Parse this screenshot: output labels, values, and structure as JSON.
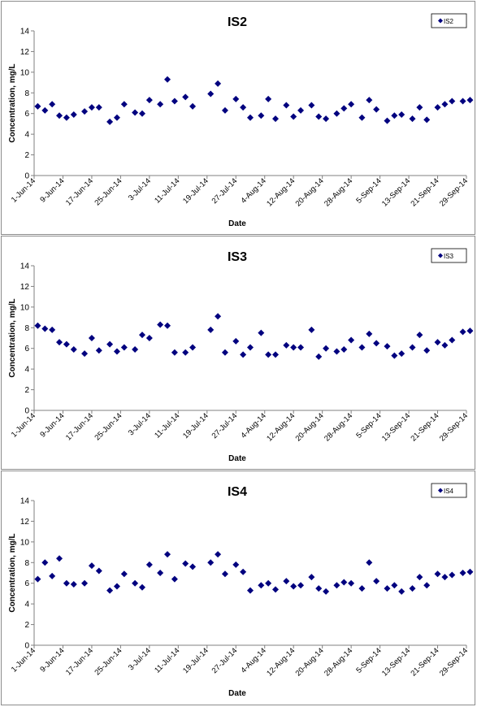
{
  "colors": {
    "marker": "#00007f",
    "axis": "#808080",
    "text": "#000000",
    "frame": "#8c8c8c"
  },
  "chart_data": [
    {
      "type": "scatter",
      "title": "IS2",
      "xlabel": "Date",
      "ylabel": "Concentration, mg/L",
      "legend": [
        "IS2"
      ],
      "legend_position": "top-right",
      "grid": false,
      "xlim": [
        "1-Jun-14",
        "29-Sep-14"
      ],
      "ylim": [
        0,
        14
      ],
      "y_ticks": [
        "0",
        "2",
        "4",
        "6",
        "8",
        "10",
        "12",
        "14"
      ],
      "x_ticks": [
        "1-Jun-14",
        "9-Jun-14",
        "17-Jun-14",
        "25-Jun-14",
        "3-Jul-14",
        "11-Jul-14",
        "19-Jul-14",
        "27-Jul-14",
        "4-Aug-14",
        "12-Aug-14",
        "20-Aug-14",
        "28-Aug-14",
        "5-Sep-14",
        "13-Sep-14",
        "21-Sep-14",
        "29-Sep-14"
      ],
      "series": [
        {
          "name": "IS2",
          "x": [
            "2-Jun-14",
            "4-Jun-14",
            "6-Jun-14",
            "8-Jun-14",
            "10-Jun-14",
            "12-Jun-14",
            "15-Jun-14",
            "17-Jun-14",
            "19-Jun-14",
            "22-Jun-14",
            "24-Jun-14",
            "26-Jun-14",
            "29-Jun-14",
            "1-Jul-14",
            "3-Jul-14",
            "6-Jul-14",
            "8-Jul-14",
            "10-Jul-14",
            "13-Jul-14",
            "15-Jul-14",
            "20-Jul-14",
            "22-Jul-14",
            "24-Jul-14",
            "27-Jul-14",
            "29-Jul-14",
            "31-Jul-14",
            "3-Aug-14",
            "5-Aug-14",
            "7-Aug-14",
            "10-Aug-14",
            "12-Aug-14",
            "14-Aug-14",
            "17-Aug-14",
            "19-Aug-14",
            "21-Aug-14",
            "24-Aug-14",
            "26-Aug-14",
            "28-Aug-14",
            "31-Aug-14",
            "2-Sep-14",
            "4-Sep-14",
            "7-Sep-14",
            "9-Sep-14",
            "11-Sep-14",
            "14-Sep-14",
            "16-Sep-14",
            "18-Sep-14",
            "21-Sep-14",
            "23-Sep-14",
            "25-Sep-14",
            "28-Sep-14",
            "30-Sep-14"
          ],
          "y": [
            6.7,
            6.3,
            6.9,
            5.8,
            5.6,
            5.9,
            6.2,
            6.6,
            6.6,
            5.2,
            5.6,
            6.9,
            6.1,
            6.0,
            7.3,
            6.9,
            9.3,
            7.2,
            7.6,
            6.7,
            7.9,
            8.9,
            6.3,
            7.4,
            6.6,
            5.6,
            5.8,
            7.4,
            5.5,
            6.8,
            5.7,
            6.3,
            6.8,
            5.7,
            5.5,
            6.0,
            6.5,
            6.9,
            5.6,
            7.3,
            6.4,
            5.3,
            5.8,
            5.9,
            5.5,
            6.6,
            5.4,
            6.6,
            6.9,
            7.2,
            7.2,
            7.3
          ]
        }
      ]
    },
    {
      "type": "scatter",
      "title": "IS3",
      "xlabel": "Date",
      "ylabel": "Concentration, mg/L",
      "legend": [
        "IS3"
      ],
      "legend_position": "top-right",
      "grid": false,
      "xlim": [
        "1-Jun-14",
        "29-Sep-14"
      ],
      "ylim": [
        0,
        14
      ],
      "y_ticks": [
        "0",
        "2",
        "4",
        "6",
        "8",
        "10",
        "12",
        "14"
      ],
      "x_ticks": [
        "1-Jun-14",
        "9-Jun-14",
        "17-Jun-14",
        "25-Jun-14",
        "3-Jul-14",
        "11-Jul-14",
        "19-Jul-14",
        "27-Jul-14",
        "4-Aug-14",
        "12-Aug-14",
        "20-Aug-14",
        "28-Aug-14",
        "5-Sep-14",
        "13-Sep-14",
        "21-Sep-14",
        "29-Sep-14"
      ],
      "series": [
        {
          "name": "IS3",
          "x": [
            "2-Jun-14",
            "4-Jun-14",
            "6-Jun-14",
            "8-Jun-14",
            "10-Jun-14",
            "12-Jun-14",
            "15-Jun-14",
            "17-Jun-14",
            "19-Jun-14",
            "22-Jun-14",
            "24-Jun-14",
            "26-Jun-14",
            "29-Jun-14",
            "1-Jul-14",
            "3-Jul-14",
            "6-Jul-14",
            "8-Jul-14",
            "10-Jul-14",
            "13-Jul-14",
            "15-Jul-14",
            "20-Jul-14",
            "22-Jul-14",
            "24-Jul-14",
            "27-Jul-14",
            "29-Jul-14",
            "31-Jul-14",
            "3-Aug-14",
            "5-Aug-14",
            "7-Aug-14",
            "10-Aug-14",
            "12-Aug-14",
            "14-Aug-14",
            "17-Aug-14",
            "19-Aug-14",
            "21-Aug-14",
            "24-Aug-14",
            "26-Aug-14",
            "28-Aug-14",
            "31-Aug-14",
            "2-Sep-14",
            "4-Sep-14",
            "7-Sep-14",
            "9-Sep-14",
            "11-Sep-14",
            "14-Sep-14",
            "16-Sep-14",
            "18-Sep-14",
            "21-Sep-14",
            "23-Sep-14",
            "25-Sep-14",
            "28-Sep-14",
            "30-Sep-14"
          ],
          "y": [
            8.2,
            7.9,
            7.8,
            6.6,
            6.4,
            5.9,
            5.5,
            7.0,
            5.8,
            6.4,
            5.7,
            6.1,
            5.9,
            7.3,
            7.0,
            8.3,
            8.2,
            5.6,
            5.6,
            6.1,
            7.8,
            9.1,
            5.6,
            6.7,
            5.4,
            6.1,
            7.5,
            5.4,
            5.4,
            6.3,
            6.1,
            6.1,
            7.8,
            5.2,
            6.0,
            5.7,
            5.9,
            6.8,
            6.1,
            7.4,
            6.5,
            6.2,
            5.3,
            5.5,
            6.1,
            7.3,
            5.8,
            6.6,
            6.3,
            6.8,
            7.6,
            7.7
          ]
        }
      ]
    },
    {
      "type": "scatter",
      "title": "IS4",
      "xlabel": "Date",
      "ylabel": "Concentration, mg/L",
      "legend": [
        "IS4"
      ],
      "legend_position": "top-right",
      "grid": false,
      "xlim": [
        "1-Jun-14",
        "29-Sep-14"
      ],
      "ylim": [
        0,
        14
      ],
      "y_ticks": [
        "0",
        "2",
        "4",
        "6",
        "8",
        "10",
        "12",
        "14"
      ],
      "x_ticks": [
        "1-Jun-14",
        "9-Jun-14",
        "17-Jun-14",
        "25-Jun-14",
        "3-Jul-14",
        "11-Jul-14",
        "19-Jul-14",
        "27-Jul-14",
        "4-Aug-14",
        "12-Aug-14",
        "20-Aug-14",
        "28-Aug-14",
        "5-Sep-14",
        "13-Sep-14",
        "21-Sep-14",
        "29-Sep-14"
      ],
      "series": [
        {
          "name": "IS4",
          "x": [
            "2-Jun-14",
            "4-Jun-14",
            "6-Jun-14",
            "8-Jun-14",
            "10-Jun-14",
            "12-Jun-14",
            "15-Jun-14",
            "17-Jun-14",
            "19-Jun-14",
            "22-Jun-14",
            "24-Jun-14",
            "26-Jun-14",
            "29-Jun-14",
            "1-Jul-14",
            "3-Jul-14",
            "6-Jul-14",
            "8-Jul-14",
            "10-Jul-14",
            "13-Jul-14",
            "15-Jul-14",
            "20-Jul-14",
            "22-Jul-14",
            "24-Jul-14",
            "27-Jul-14",
            "29-Jul-14",
            "31-Jul-14",
            "3-Aug-14",
            "5-Aug-14",
            "7-Aug-14",
            "10-Aug-14",
            "12-Aug-14",
            "14-Aug-14",
            "17-Aug-14",
            "19-Aug-14",
            "21-Aug-14",
            "24-Aug-14",
            "26-Aug-14",
            "28-Aug-14",
            "31-Aug-14",
            "2-Sep-14",
            "4-Sep-14",
            "7-Sep-14",
            "9-Sep-14",
            "11-Sep-14",
            "14-Sep-14",
            "16-Sep-14",
            "18-Sep-14",
            "21-Sep-14",
            "23-Sep-14",
            "25-Sep-14",
            "28-Sep-14",
            "30-Sep-14"
          ],
          "y": [
            6.4,
            8.0,
            6.7,
            8.4,
            6.0,
            5.9,
            6.0,
            7.7,
            7.2,
            5.3,
            5.7,
            6.9,
            6.0,
            5.6,
            7.8,
            7.0,
            8.8,
            6.4,
            7.9,
            7.6,
            8.0,
            8.8,
            6.9,
            7.8,
            7.1,
            5.3,
            5.8,
            6.0,
            5.4,
            6.2,
            5.7,
            5.8,
            6.6,
            5.5,
            5.2,
            5.8,
            6.1,
            6.0,
            5.5,
            8.0,
            6.2,
            5.5,
            5.8,
            5.2,
            5.5,
            6.6,
            5.8,
            6.9,
            6.6,
            6.8,
            7.0,
            7.1
          ]
        }
      ]
    }
  ]
}
